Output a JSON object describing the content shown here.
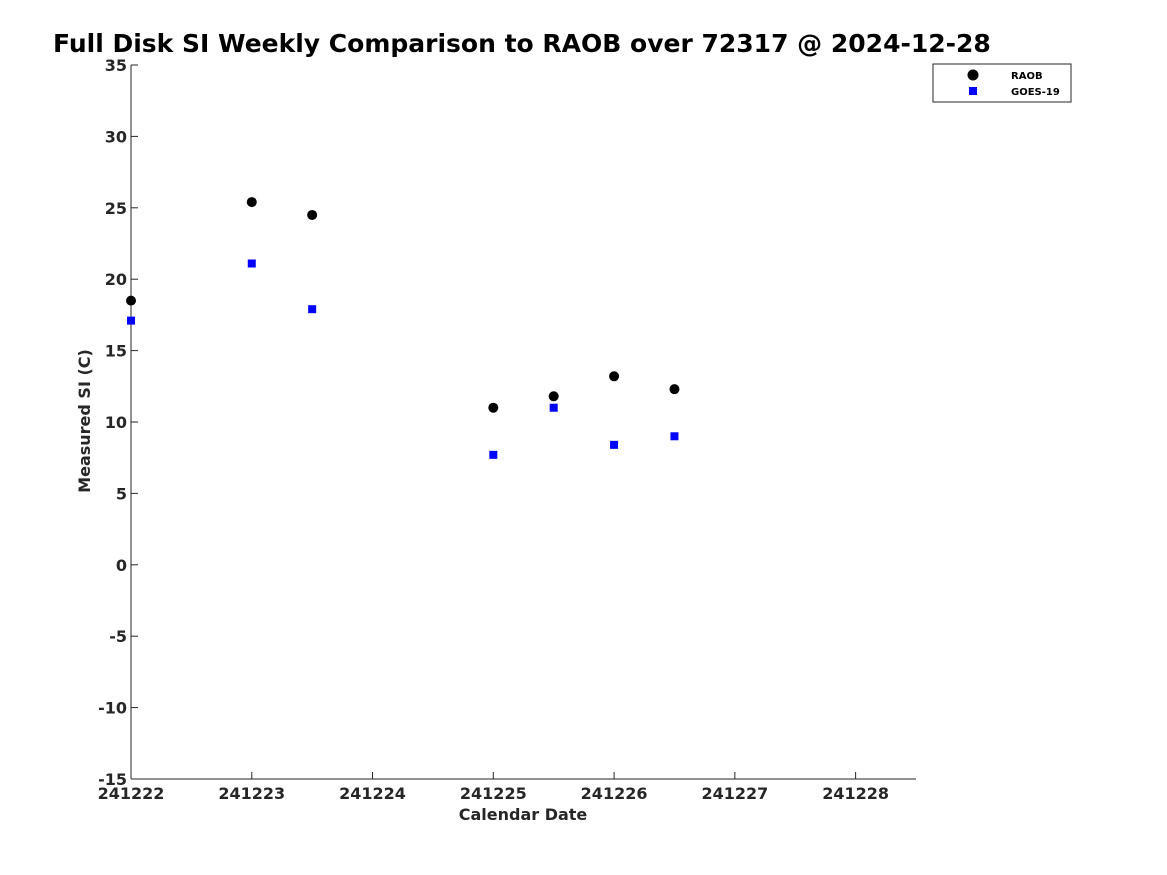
{
  "chart_data": {
    "type": "scatter",
    "title": "Full Disk SI Weekly Comparison to RAOB over 72317 @ 2024-12-28",
    "xlabel": "Calendar Date",
    "ylabel": "Measured SI (C)",
    "xlim": [
      241222,
      241228.5
    ],
    "ylim": [
      -15,
      35
    ],
    "x_ticks": [
      241222,
      241223,
      241224,
      241225,
      241226,
      241227,
      241228
    ],
    "x_tick_labels": [
      "241222",
      "241223",
      "241224",
      "241225",
      "241226",
      "241227",
      "241228"
    ],
    "y_ticks": [
      -15,
      -10,
      -5,
      0,
      5,
      10,
      15,
      20,
      25,
      30,
      35
    ],
    "y_tick_labels": [
      "-15",
      "-10",
      "-5",
      "0",
      "5",
      "10",
      "15",
      "20",
      "25",
      "30",
      "35"
    ],
    "grid": false,
    "legend_position": "top-right",
    "series": [
      {
        "name": "RAOB",
        "marker": "circle",
        "color": "#000000",
        "x": [
          241222,
          241223,
          241223.5,
          241225,
          241225.5,
          241226,
          241226.5
        ],
        "y": [
          18.5,
          25.4,
          24.5,
          11.0,
          11.8,
          13.2,
          12.3
        ]
      },
      {
        "name": "GOES-19",
        "marker": "square",
        "color": "#0000ff",
        "x": [
          241222,
          241223,
          241223.5,
          241225,
          241225.5,
          241226,
          241226.5
        ],
        "y": [
          17.1,
          21.1,
          17.9,
          7.7,
          11.0,
          8.4,
          9.0
        ]
      }
    ]
  }
}
